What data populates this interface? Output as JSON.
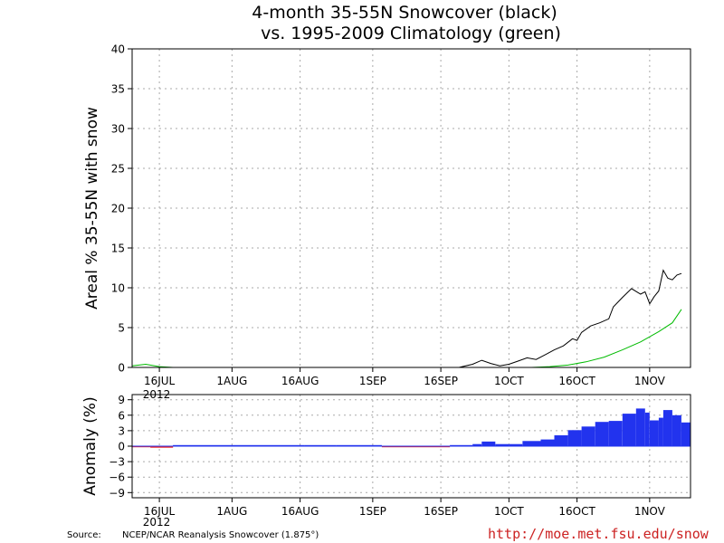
{
  "title_line1": "4-month 35-55N Snowcover (black)",
  "title_line2": "vs. 1995-2009 Climatology (green)",
  "source_label": "Source:",
  "source_text": "NCEP/NCAR Reanalysis Snowcover (1.875°)",
  "url": "http://moe.met.fsu.edu/snow",
  "colors": {
    "observed": "#000000",
    "climatology": "#00bb00",
    "anomaly_positive": "#2233ee",
    "anomaly_negative": "#ee2222",
    "grid": "#aaaaaa"
  },
  "chart_data": [
    {
      "type": "line",
      "name": "main",
      "ylabel": "Areal % 35-55N with snow",
      "ylim": [
        0,
        40
      ],
      "yticks": [
        0,
        5,
        10,
        15,
        20,
        25,
        30,
        35,
        40
      ],
      "xlim": [
        "2012-07-10",
        "2012-11-10"
      ],
      "xticks": [
        "2012-07-16",
        "2012-08-01",
        "2012-08-16",
        "2012-09-01",
        "2012-09-16",
        "2012-10-01",
        "2012-10-16",
        "2012-11-01"
      ],
      "xtick_labels": [
        "16JUL",
        "1AUG",
        "16AUG",
        "1SEP",
        "16SEP",
        "1OCT",
        "16OCT",
        "1NOV"
      ],
      "year_label": "2012",
      "grid": true,
      "series": [
        {
          "color_key": "observed",
          "points": [
            [
              "2012-07-10",
              0.0
            ],
            [
              "2012-09-20",
              0.0
            ],
            [
              "2012-09-23",
              0.4
            ],
            [
              "2012-09-25",
              0.9
            ],
            [
              "2012-09-27",
              0.5
            ],
            [
              "2012-09-29",
              0.2
            ],
            [
              "2012-10-01",
              0.4
            ],
            [
              "2012-10-03",
              0.8
            ],
            [
              "2012-10-05",
              1.2
            ],
            [
              "2012-10-07",
              1.0
            ],
            [
              "2012-10-09",
              1.6
            ],
            [
              "2012-10-11",
              2.2
            ],
            [
              "2012-10-13",
              2.7
            ],
            [
              "2012-10-15",
              3.6
            ],
            [
              "2012-10-16",
              3.4
            ],
            [
              "2012-10-17",
              4.4
            ],
            [
              "2012-10-19",
              5.2
            ],
            [
              "2012-10-21",
              5.6
            ],
            [
              "2012-10-23",
              6.1
            ],
            [
              "2012-10-24",
              7.6
            ],
            [
              "2012-10-26",
              8.8
            ],
            [
              "2012-10-28",
              9.9
            ],
            [
              "2012-10-30",
              9.2
            ],
            [
              "2012-10-31",
              9.5
            ],
            [
              "2012-11-01",
              8.0
            ],
            [
              "2012-11-02",
              8.9
            ],
            [
              "2012-11-03",
              9.6
            ],
            [
              "2012-11-04",
              12.2
            ],
            [
              "2012-11-05",
              11.2
            ],
            [
              "2012-11-06",
              11.0
            ],
            [
              "2012-11-07",
              11.6
            ],
            [
              "2012-11-08",
              11.8
            ]
          ]
        },
        {
          "color_key": "climatology",
          "points": [
            [
              "2012-07-10",
              0.2
            ],
            [
              "2012-07-13",
              0.4
            ],
            [
              "2012-07-16",
              0.1
            ],
            [
              "2012-07-19",
              0.0
            ],
            [
              "2012-10-06",
              0.0
            ],
            [
              "2012-10-10",
              0.1
            ],
            [
              "2012-10-14",
              0.3
            ],
            [
              "2012-10-18",
              0.7
            ],
            [
              "2012-10-22",
              1.3
            ],
            [
              "2012-10-26",
              2.2
            ],
            [
              "2012-10-30",
              3.2
            ],
            [
              "2012-11-03",
              4.5
            ],
            [
              "2012-11-06",
              5.6
            ],
            [
              "2012-11-08",
              7.3
            ]
          ]
        }
      ]
    },
    {
      "type": "bar",
      "name": "anomaly",
      "ylabel": "Anomaly (%)",
      "ylim": [
        -10,
        10
      ],
      "yticks": [
        9,
        6,
        3,
        0,
        -3,
        -6,
        -9
      ],
      "xlim": [
        "2012-07-10",
        "2012-11-10"
      ],
      "xticks": [
        "2012-07-16",
        "2012-08-01",
        "2012-08-16",
        "2012-09-01",
        "2012-09-16",
        "2012-10-01",
        "2012-10-16",
        "2012-11-01"
      ],
      "xtick_labels": [
        "16JUL",
        "1AUG",
        "16AUG",
        "1SEP",
        "16SEP",
        "1OCT",
        "16OCT",
        "1NOV"
      ],
      "year_label": "2012",
      "grid": true,
      "points": [
        [
          "2012-07-10",
          -0.2
        ],
        [
          "2012-07-14",
          -0.3
        ],
        [
          "2012-07-19",
          0.1
        ],
        [
          "2012-08-10",
          0.1
        ],
        [
          "2012-08-17",
          0.2
        ],
        [
          "2012-08-24",
          0.1
        ],
        [
          "2012-09-03",
          -0.1
        ],
        [
          "2012-09-10",
          -0.2
        ],
        [
          "2012-09-18",
          0.1
        ],
        [
          "2012-09-23",
          0.4
        ],
        [
          "2012-09-25",
          0.9
        ],
        [
          "2012-09-28",
          0.4
        ],
        [
          "2012-10-01",
          0.4
        ],
        [
          "2012-10-04",
          1.0
        ],
        [
          "2012-10-08",
          1.3
        ],
        [
          "2012-10-11",
          2.1
        ],
        [
          "2012-10-14",
          3.1
        ],
        [
          "2012-10-17",
          3.8
        ],
        [
          "2012-10-20",
          4.7
        ],
        [
          "2012-10-23",
          4.9
        ],
        [
          "2012-10-26",
          6.3
        ],
        [
          "2012-10-29",
          7.3
        ],
        [
          "2012-10-31",
          6.5
        ],
        [
          "2012-11-01",
          5.0
        ],
        [
          "2012-11-03",
          5.5
        ],
        [
          "2012-11-04",
          7.0
        ],
        [
          "2012-11-06",
          6.0
        ],
        [
          "2012-11-08",
          4.6
        ]
      ]
    }
  ]
}
